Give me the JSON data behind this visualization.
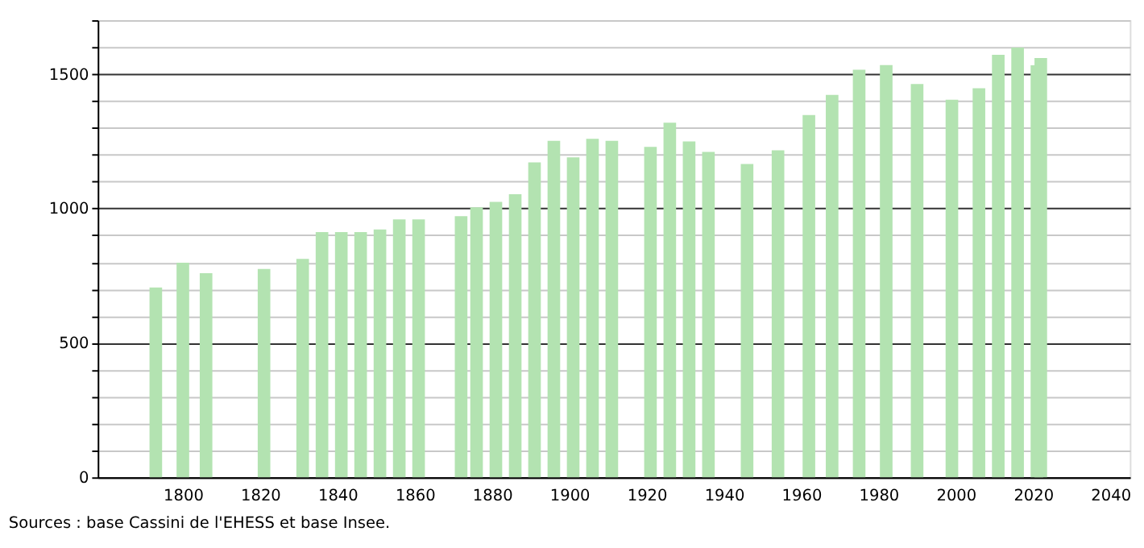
{
  "chart_data": {
    "type": "bar",
    "color": "#b3e3b1",
    "x": [
      1793,
      1800,
      1806,
      1821,
      1831,
      1836,
      1841,
      1846,
      1851,
      1856,
      1861,
      1872,
      1876,
      1881,
      1886,
      1891,
      1896,
      1901,
      1906,
      1911,
      1921,
      1926,
      1931,
      1936,
      1946,
      1954,
      1962,
      1968,
      1975,
      1982,
      1990,
      1999,
      2006,
      2011,
      2016,
      2021,
      2022
    ],
    "values": [
      706,
      798,
      759,
      775,
      812,
      912,
      912,
      912,
      922,
      959,
      959,
      971,
      1004,
      1024,
      1053,
      1171,
      1251,
      1190,
      1259,
      1251,
      1229,
      1319,
      1249,
      1210,
      1165,
      1216,
      1347,
      1422,
      1516,
      1533,
      1463,
      1404,
      1447,
      1571,
      1598,
      1532,
      1559
    ],
    "xlim": [
      1780,
      2043
    ],
    "xticks": [
      1800,
      1820,
      1840,
      1860,
      1880,
      1900,
      1920,
      1940,
      1960,
      1980,
      2000,
      2020,
      2040
    ],
    "ylim": [
      0,
      1700
    ],
    "yticks": [
      0,
      {
        "value": 100,
        "label": null
      },
      {
        "value": 200,
        "label": null
      },
      {
        "value": 300,
        "label": null
      },
      {
        "value": 400,
        "label": null
      },
      500,
      {
        "value": 600,
        "label": null
      },
      {
        "value": 700,
        "label": null
      },
      {
        "value": 800,
        "label": null
      },
      {
        "value": 900,
        "label": null
      },
      1000,
      {
        "value": 1100,
        "label": null
      },
      {
        "value": 1200,
        "label": null
      },
      {
        "value": 1300,
        "label": null
      },
      {
        "value": 1400,
        "label": null
      },
      1500,
      {
        "value": 1600,
        "label": null
      },
      {
        "value": 1700,
        "label": null
      }
    ],
    "grid": "y",
    "annotations": [
      "Sources : base Cassini de l'EHESS et base Insee."
    ]
  }
}
